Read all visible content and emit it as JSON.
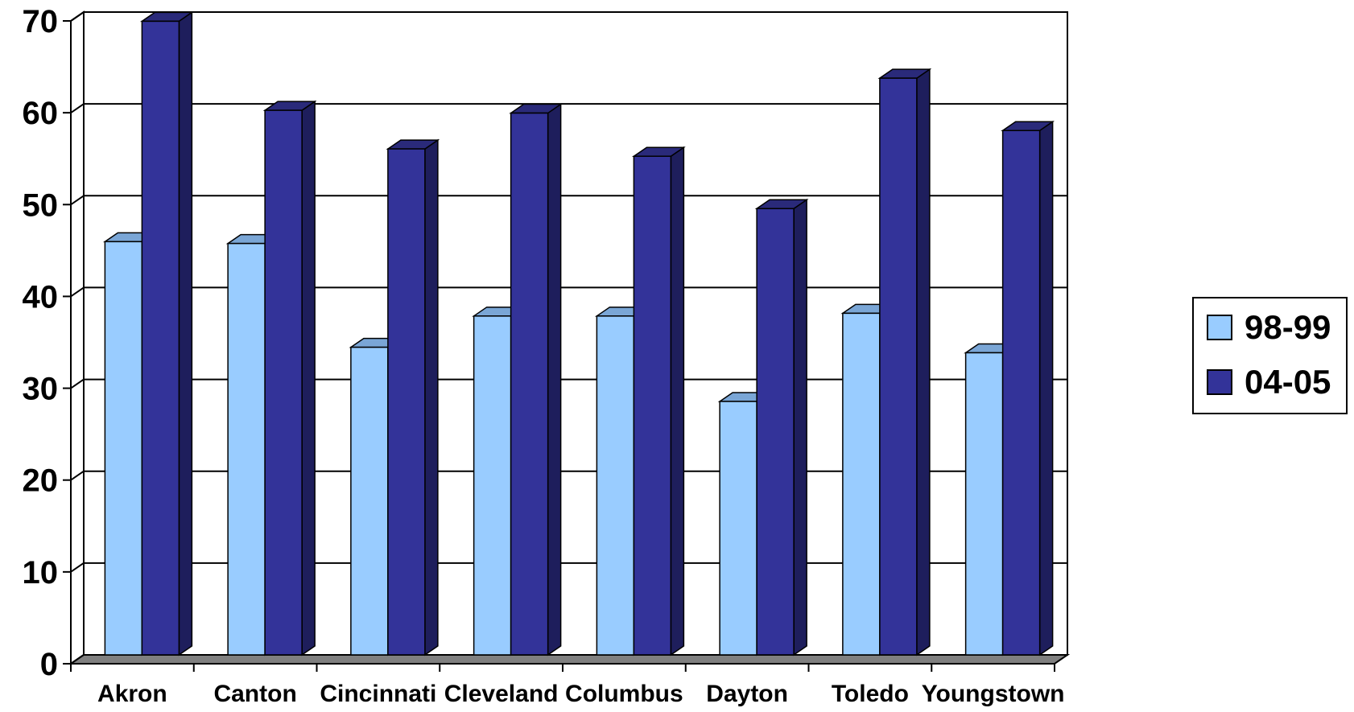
{
  "chart_data": {
    "type": "bar",
    "title": "",
    "xlabel": "",
    "ylabel": "",
    "ylim": [
      0,
      70
    ],
    "yticks": [
      0,
      10,
      20,
      30,
      40,
      50,
      60,
      70
    ],
    "categories": [
      "Akron",
      "Canton",
      "Cincinnati",
      "Cleveland",
      "Columbus",
      "Dayton",
      "Toledo",
      "Youngstown"
    ],
    "series": [
      {
        "name": "98-99",
        "color": "#99ccff",
        "values": [
          45,
          44.8,
          33.5,
          36.9,
          36.9,
          27.6,
          37.2,
          32.9
        ]
      },
      {
        "name": "04-05",
        "color": "#333399",
        "values": [
          69,
          59.3,
          55.1,
          59,
          54.3,
          48.6,
          62.8,
          57.1
        ]
      }
    ],
    "grid": true,
    "legend": "right"
  }
}
